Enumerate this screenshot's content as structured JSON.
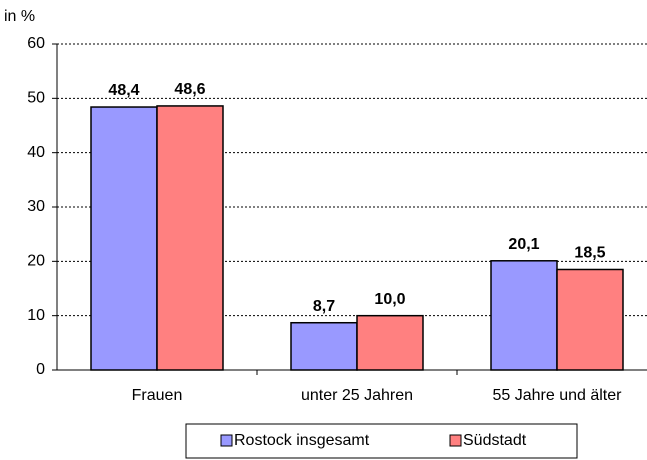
{
  "chart_data": {
    "type": "bar",
    "y_label": "in %",
    "categories": [
      "Frauen",
      "unter 25 Jahren",
      "55 Jahre und älter"
    ],
    "series": [
      {
        "name": "Rostock insgesamt",
        "color": "#9999ff",
        "values": [
          48.4,
          8.7,
          20.1
        ],
        "value_labels": [
          "48,4",
          "8,7",
          "20,1"
        ]
      },
      {
        "name": "Südstadt",
        "color": "#ff8080",
        "values": [
          48.6,
          10.0,
          18.5
        ],
        "value_labels": [
          "48,6",
          "10,0",
          "18,5"
        ]
      }
    ],
    "ylim": [
      0,
      60
    ],
    "yticks": [
      0,
      10,
      20,
      30,
      40,
      50,
      60
    ],
    "grid": true
  }
}
